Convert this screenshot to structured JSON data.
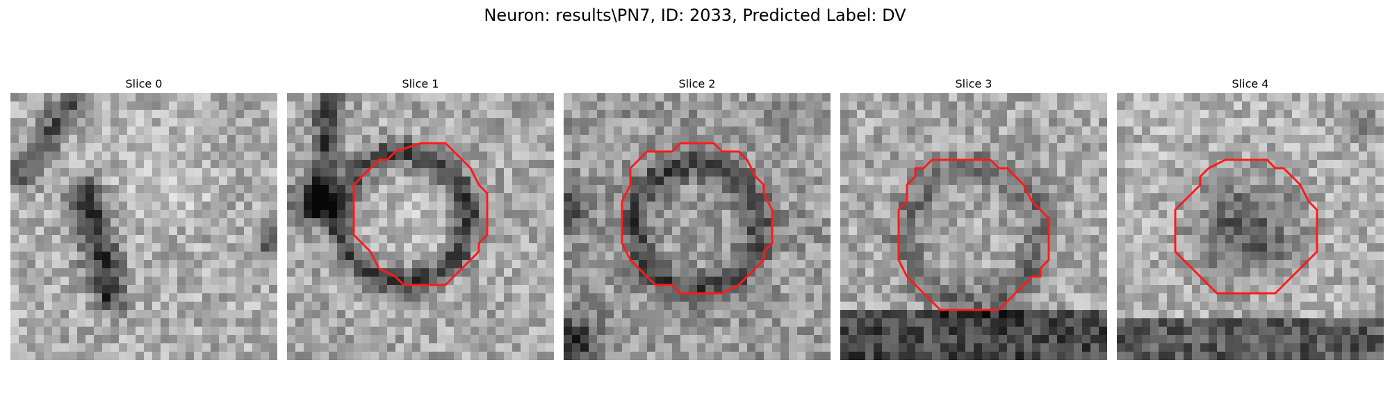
{
  "figure": {
    "title": "Neuron: results\\PN7, ID: 2033, Predicted Label: DV"
  },
  "colors": {
    "contour": "#ff1a1a",
    "background": "#ffffff"
  },
  "colormap": "gray",
  "slices": [
    {
      "title": "Slice 0",
      "has_contour": false
    },
    {
      "title": "Slice 1",
      "has_contour": true
    },
    {
      "title": "Slice 2",
      "has_contour": true
    },
    {
      "title": "Slice 3",
      "has_contour": true
    },
    {
      "title": "Slice 4",
      "has_contour": true
    }
  ]
}
